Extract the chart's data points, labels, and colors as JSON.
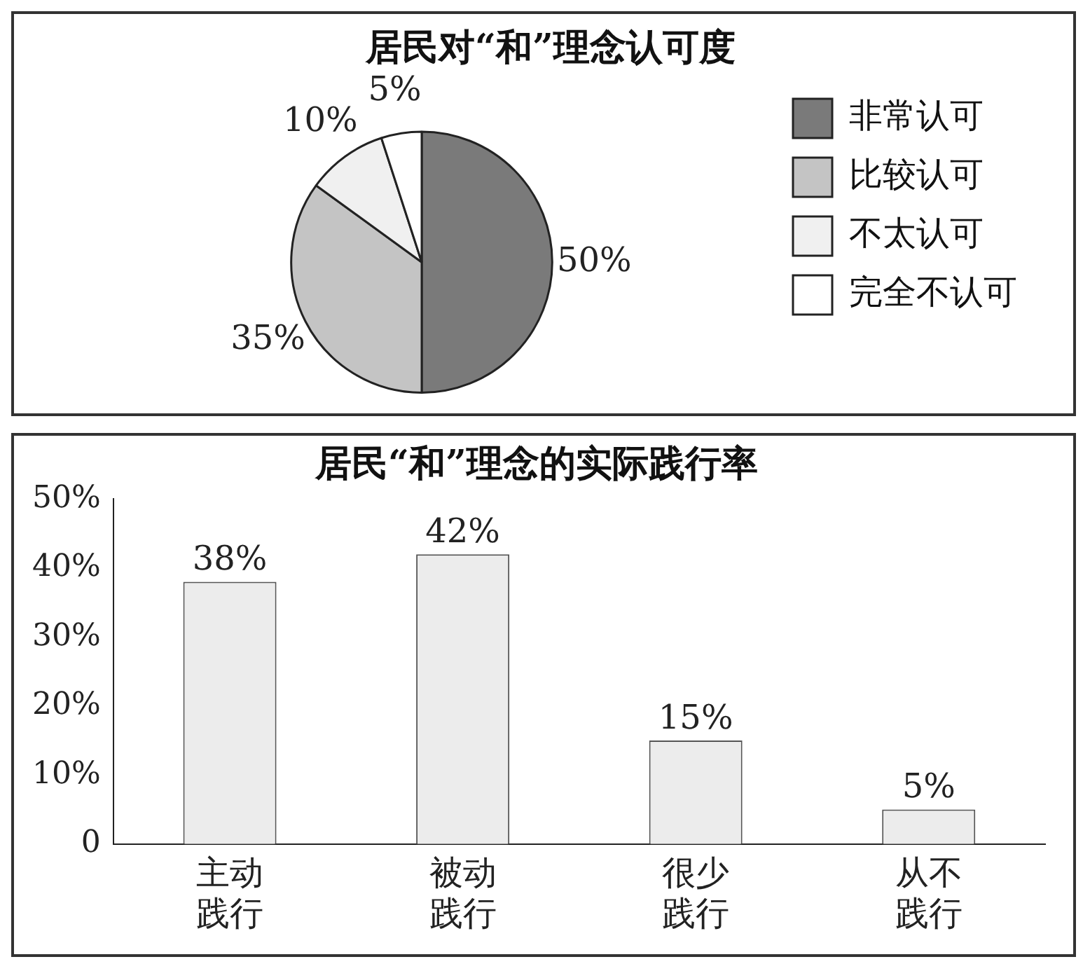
{
  "chart_data": [
    {
      "type": "pie",
      "title": "居民对“和”理念认可度",
      "categories": [
        "非常认可",
        "比较认可",
        "不太认可",
        "完全不认可"
      ],
      "values": [
        50,
        35,
        10,
        5
      ],
      "colors": [
        "#7a7a7a",
        "#c4c4c4",
        "#f0f0f0",
        "#ffffff"
      ],
      "value_labels": [
        "50%",
        "35%",
        "10%",
        "5%"
      ],
      "legend": "right"
    },
    {
      "type": "bar",
      "title": "居民“和”理念的实际践行率",
      "categories": [
        "主动践行",
        "被动践行",
        "很少践行",
        "从不践行"
      ],
      "values": [
        38,
        42,
        15,
        5
      ],
      "color": "#ececec",
      "value_labels": [
        "38%",
        "42%",
        "15%",
        "5%"
      ],
      "ylim": [
        0,
        50
      ],
      "yticks": [
        {
          "value": 0,
          "label": "0"
        },
        {
          "value": 10,
          "label": "10%"
        },
        {
          "value": 20,
          "label": "20%"
        },
        {
          "value": 30,
          "label": "30%"
        },
        {
          "value": 40,
          "label": "40%"
        },
        {
          "value": 50,
          "label": "50%"
        }
      ]
    }
  ]
}
